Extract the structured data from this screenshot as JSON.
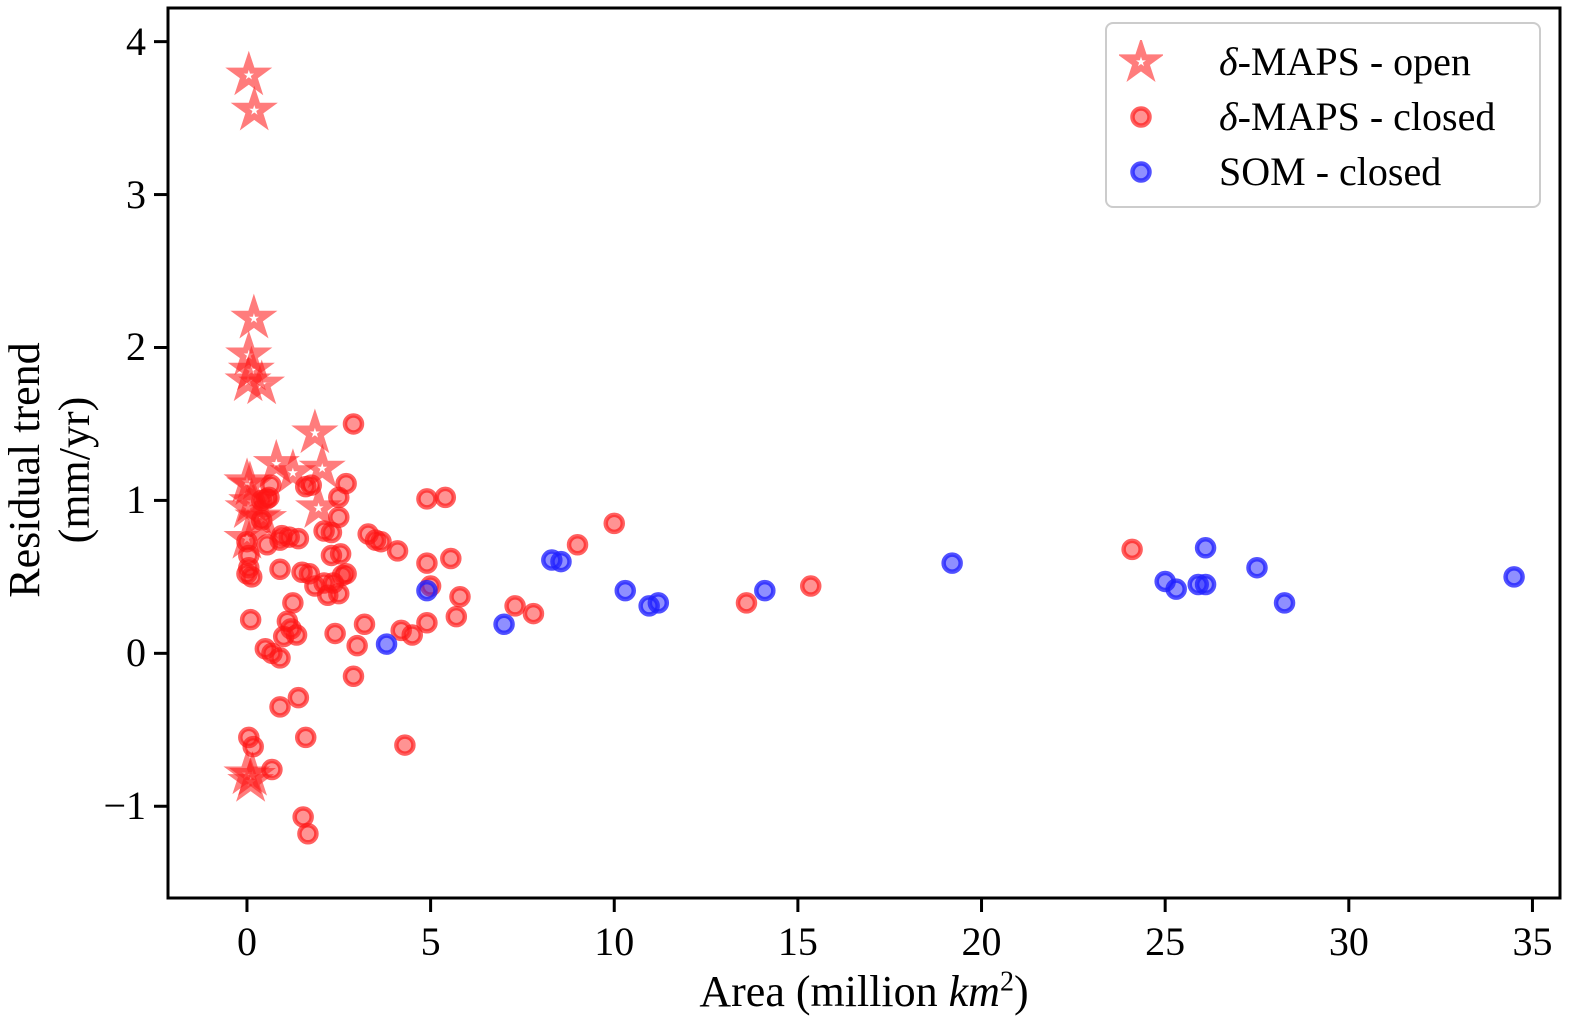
{
  "figure": {
    "background": "#ffffff"
  },
  "axes": {
    "xlabel_parts": {
      "pre": "Area (million ",
      "math": "km",
      "sup": "2",
      "post": ")"
    },
    "ylabel_line1": "Residual trend",
    "ylabel_line2": "(mm/yr)",
    "xtick_labels": [
      "0",
      "5",
      "10",
      "15",
      "20",
      "25",
      "30",
      "35"
    ],
    "ytick_labels": [
      "−1",
      "0",
      "1",
      "2",
      "3",
      "4"
    ]
  },
  "legend": {
    "border_color": "#cccccc",
    "items": [
      {
        "prefix": "δ",
        "text": "-MAPS - open",
        "series": 0
      },
      {
        "prefix": "δ",
        "text": "-MAPS - closed",
        "series": 1
      },
      {
        "prefix": "",
        "text": "SOM - closed",
        "series": 2
      }
    ]
  },
  "chart_data": {
    "type": "scatter",
    "title": "",
    "xlabel": "Area (million km²)",
    "ylabel": "Residual trend (mm/yr)",
    "xlim": [
      -2.15,
      35.75
    ],
    "ylim": [
      -1.6,
      4.22
    ],
    "xticks": [
      0,
      5,
      10,
      15,
      20,
      25,
      30,
      35
    ],
    "yticks": [
      -1,
      0,
      1,
      2,
      3,
      4
    ],
    "grid": false,
    "legend_position": "upper right",
    "series": [
      {
        "name": "δ-MAPS - open",
        "marker": "star-open",
        "color": "#ff1e1e",
        "stroke_opacity": 0.58,
        "fill_opacity": 0,
        "points": [
          [
            0.05,
            3.78
          ],
          [
            0.2,
            3.55
          ],
          [
            0.19,
            2.19
          ],
          [
            0.05,
            1.95
          ],
          [
            0.12,
            1.85
          ],
          [
            0.03,
            1.78
          ],
          [
            0.4,
            1.76
          ],
          [
            1.85,
            1.44
          ],
          [
            0.8,
            1.24
          ],
          [
            1.25,
            1.18
          ],
          [
            2.05,
            1.21
          ],
          [
            0.0,
            1.12
          ],
          [
            0.08,
            1.1
          ],
          [
            0.13,
            0.99
          ],
          [
            0.03,
            0.95
          ],
          [
            1.95,
            0.95
          ],
          [
            0.3,
            0.89
          ],
          [
            0.45,
            0.88
          ],
          [
            0.0,
            0.75
          ],
          [
            0.0,
            -0.79
          ],
          [
            0.1,
            -0.84
          ],
          [
            0.15,
            -0.8
          ]
        ]
      },
      {
        "name": "δ-MAPS - closed",
        "marker": "circle",
        "color": "#ff1414",
        "stroke_opacity": 0.68,
        "fill_opacity": 0.46,
        "points": [
          [
            2.9,
            1.5
          ],
          [
            0.65,
            1.1
          ],
          [
            1.6,
            1.09
          ],
          [
            1.75,
            1.1
          ],
          [
            0.6,
            1.02
          ],
          [
            2.7,
            1.11
          ],
          [
            4.9,
            1.01
          ],
          [
            5.4,
            1.02
          ],
          [
            2.5,
            1.02
          ],
          [
            0.4,
            1.0
          ],
          [
            0.54,
            1.01
          ],
          [
            0.95,
            0.77
          ],
          [
            1.15,
            0.76
          ],
          [
            1.4,
            0.75
          ],
          [
            3.3,
            0.78
          ],
          [
            2.1,
            0.8
          ],
          [
            2.3,
            0.79
          ],
          [
            3.5,
            0.74
          ],
          [
            3.65,
            0.73
          ],
          [
            2.5,
            0.89
          ],
          [
            0.4,
            0.87
          ],
          [
            0.55,
            0.71
          ],
          [
            0.9,
            0.74
          ],
          [
            0.0,
            0.73
          ],
          [
            4.1,
            0.67
          ],
          [
            2.3,
            0.64
          ],
          [
            2.55,
            0.65
          ],
          [
            0.05,
            0.64
          ],
          [
            0.05,
            0.56
          ],
          [
            0.13,
            0.5
          ],
          [
            0.9,
            0.55
          ],
          [
            1.5,
            0.53
          ],
          [
            1.7,
            0.52
          ],
          [
            2.7,
            0.52
          ],
          [
            5.55,
            0.62
          ],
          [
            4.9,
            0.59
          ],
          [
            0.0,
            0.52
          ],
          [
            1.85,
            0.44
          ],
          [
            2.1,
            0.46
          ],
          [
            2.35,
            0.46
          ],
          [
            2.6,
            0.51
          ],
          [
            2.2,
            0.38
          ],
          [
            2.5,
            0.39
          ],
          [
            5.0,
            0.44
          ],
          [
            5.8,
            0.37
          ],
          [
            1.25,
            0.33
          ],
          [
            2.4,
            0.13
          ],
          [
            3.2,
            0.19
          ],
          [
            3.0,
            0.05
          ],
          [
            4.2,
            0.15
          ],
          [
            4.5,
            0.12
          ],
          [
            4.9,
            0.2
          ],
          [
            5.7,
            0.24
          ],
          [
            7.3,
            0.31
          ],
          [
            7.8,
            0.26
          ],
          [
            9.0,
            0.71
          ],
          [
            10.0,
            0.85
          ],
          [
            13.6,
            0.33
          ],
          [
            15.35,
            0.44
          ],
          [
            24.1,
            0.68
          ],
          [
            0.1,
            0.22
          ],
          [
            1.1,
            0.21
          ],
          [
            1.2,
            0.16
          ],
          [
            1.0,
            0.11
          ],
          [
            1.35,
            0.12
          ],
          [
            0.5,
            0.03
          ],
          [
            0.68,
            0.0
          ],
          [
            0.9,
            -0.03
          ],
          [
            2.9,
            -0.15
          ],
          [
            1.4,
            -0.29
          ],
          [
            0.9,
            -0.35
          ],
          [
            0.05,
            -0.55
          ],
          [
            0.17,
            -0.61
          ],
          [
            1.6,
            -0.55
          ],
          [
            0.68,
            -0.76
          ],
          [
            4.3,
            -0.6
          ],
          [
            1.53,
            -1.07
          ],
          [
            1.66,
            -1.18
          ]
        ]
      },
      {
        "name": "SOM - closed",
        "marker": "circle",
        "color": "#2020ff",
        "stroke_opacity": 0.78,
        "fill_opacity": 0.5,
        "points": [
          [
            3.8,
            0.06
          ],
          [
            4.9,
            0.41
          ],
          [
            7.0,
            0.19
          ],
          [
            8.3,
            0.61
          ],
          [
            8.55,
            0.6
          ],
          [
            10.3,
            0.41
          ],
          [
            10.95,
            0.31
          ],
          [
            11.2,
            0.33
          ],
          [
            14.1,
            0.41
          ],
          [
            19.2,
            0.59
          ],
          [
            25.0,
            0.47
          ],
          [
            25.3,
            0.42
          ],
          [
            25.9,
            0.45
          ],
          [
            26.1,
            0.45
          ],
          [
            26.1,
            0.69
          ],
          [
            27.5,
            0.56
          ],
          [
            28.25,
            0.33
          ],
          [
            34.5,
            0.5
          ]
        ]
      }
    ]
  }
}
